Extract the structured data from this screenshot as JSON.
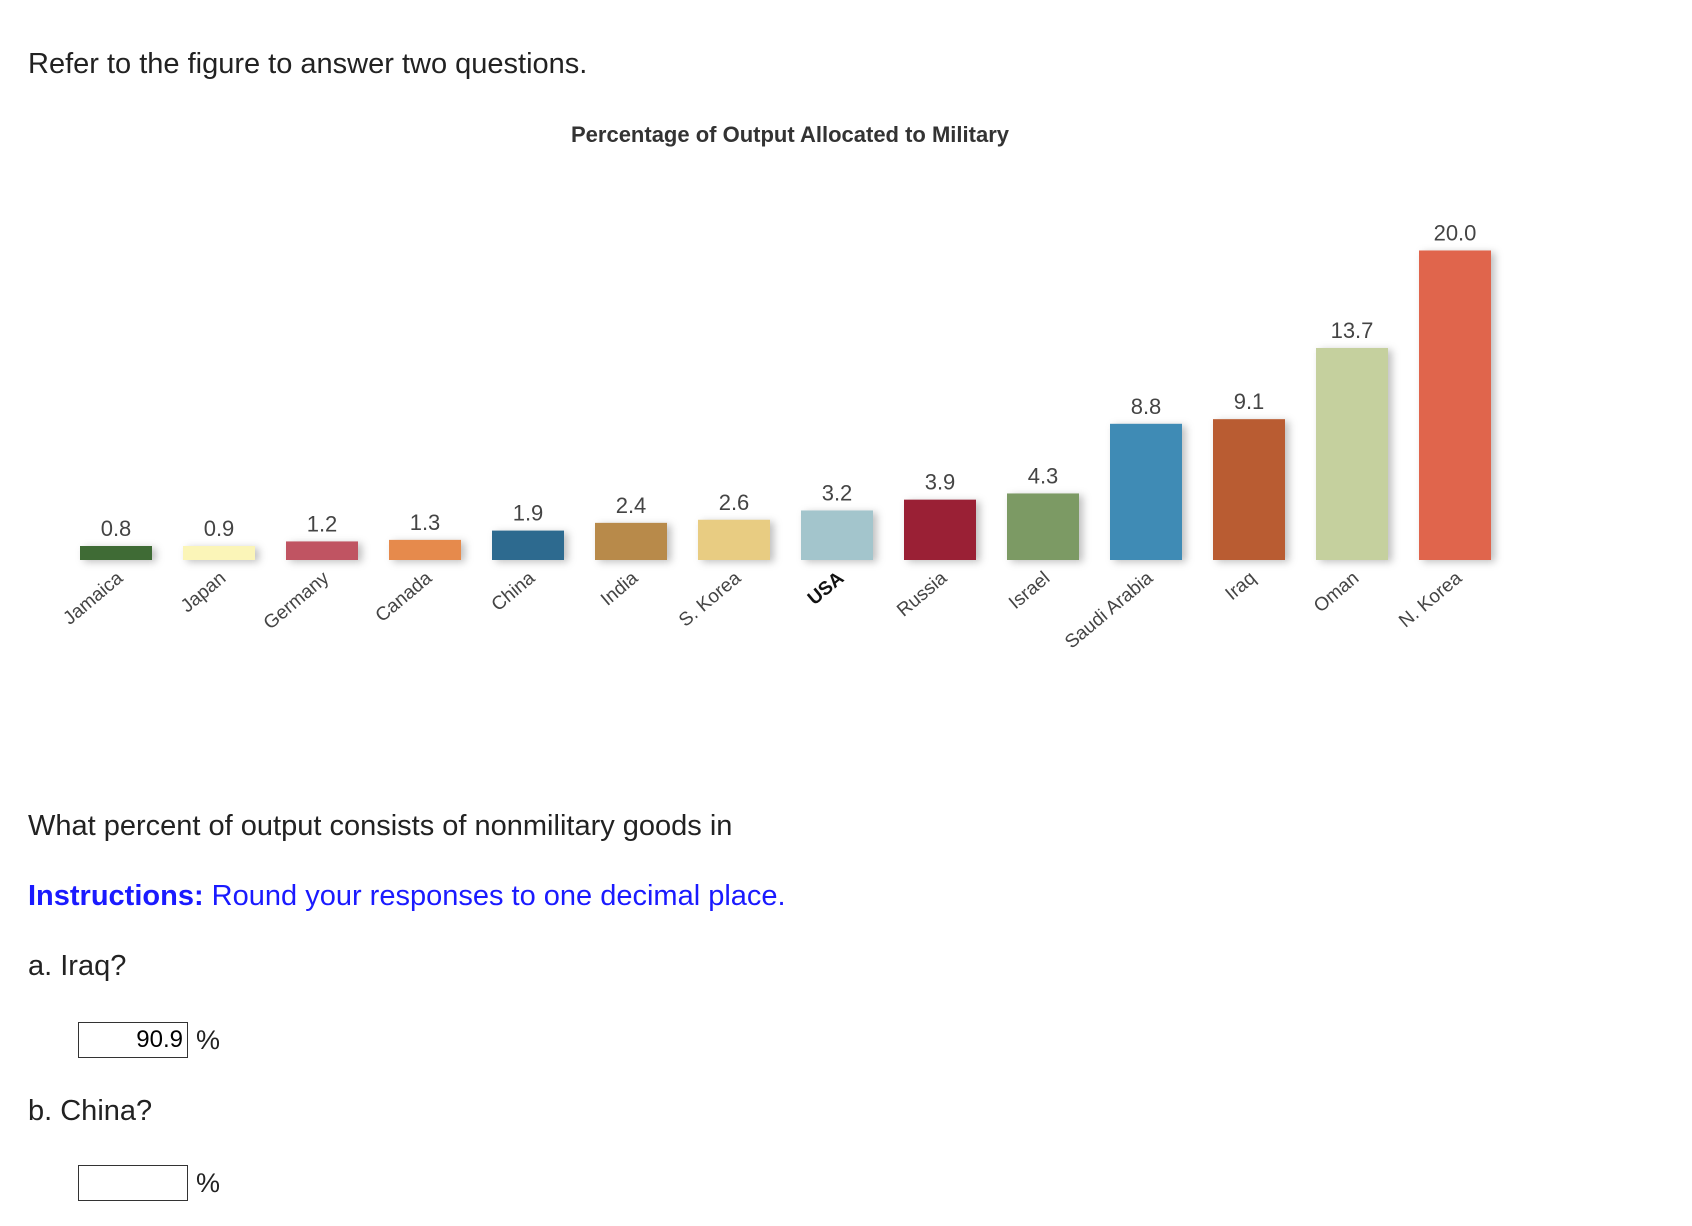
{
  "intro_text": "Refer to the figure to answer two questions.",
  "chart_data": {
    "type": "bar",
    "title": "Percentage of Output Allocated to Military",
    "xlabel": "",
    "ylabel": "",
    "ylim": [
      0,
      21
    ],
    "grid": false,
    "categories": [
      "Jamaica",
      "Japan",
      "Germany",
      "Canada",
      "China",
      "India",
      "S. Korea",
      "USA",
      "Russia",
      "Israel",
      "Saudi Arabia",
      "Iraq",
      "Oman",
      "N. Korea"
    ],
    "values": [
      0.8,
      0.9,
      1.2,
      1.3,
      1.9,
      2.4,
      2.6,
      3.2,
      3.9,
      4.3,
      8.8,
      9.1,
      13.7,
      20.0
    ],
    "value_labels": [
      "0.8",
      "0.9",
      "1.2",
      "1.3",
      "1.9",
      "2.4",
      "2.6",
      "3.2",
      "3.9",
      "4.3",
      "8.8",
      "9.1",
      "13.7",
      "20.0"
    ],
    "colors": [
      "#3f6b35",
      "#fbf5b8",
      "#c05462",
      "#e68a4c",
      "#2d6a8f",
      "#b88a4a",
      "#e8cc82",
      "#a3c5cc",
      "#9a2035",
      "#7c9a64",
      "#3f8bb5",
      "#b95c32",
      "#c5d09e",
      "#e0654c"
    ],
    "bold_categories": [
      "USA"
    ]
  },
  "question_text": "What percent of output consists of nonmilitary goods in",
  "instructions": {
    "label": "Instructions:",
    "text": " Round your responses to one decimal place."
  },
  "part_a": {
    "label": "a. Iraq?",
    "value": "90.9",
    "unit": "%"
  },
  "part_b": {
    "label": "b. China?",
    "value": "",
    "unit": "%"
  }
}
